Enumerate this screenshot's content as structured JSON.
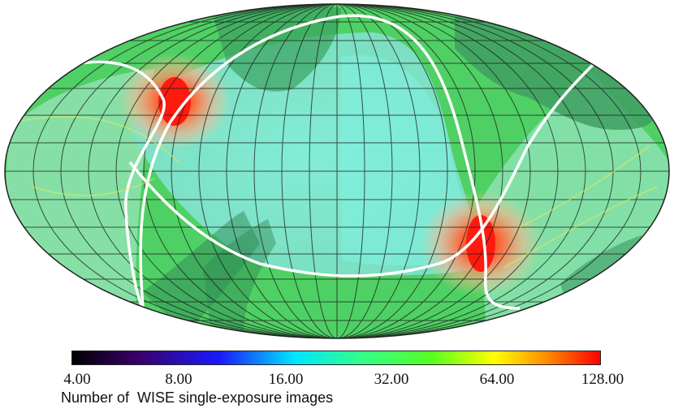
{
  "map": {
    "projection": "Aitoff-Hammer all-sky",
    "description_colors": {
      "ocean_base": "#55d36a",
      "plane_band": "#6fe6d8",
      "dark_overlay": "#2f8a55",
      "hotspot": "#e6332a",
      "ecliptic_line": "#ffffff",
      "graticule": "#1a1a1a"
    }
  },
  "colorbar": {
    "ticks": [
      "4.00",
      "8.00",
      "16.00",
      "32.00",
      "64.00",
      "128.00"
    ],
    "colors": [
      "#000000",
      "#3a0066",
      "#1a1aff",
      "#00e5ff",
      "#33ff88",
      "#55ff22",
      "#ffff00",
      "#ff8a00",
      "#ff0000"
    ]
  },
  "caption": "Number of  WISE single-exposure images"
}
